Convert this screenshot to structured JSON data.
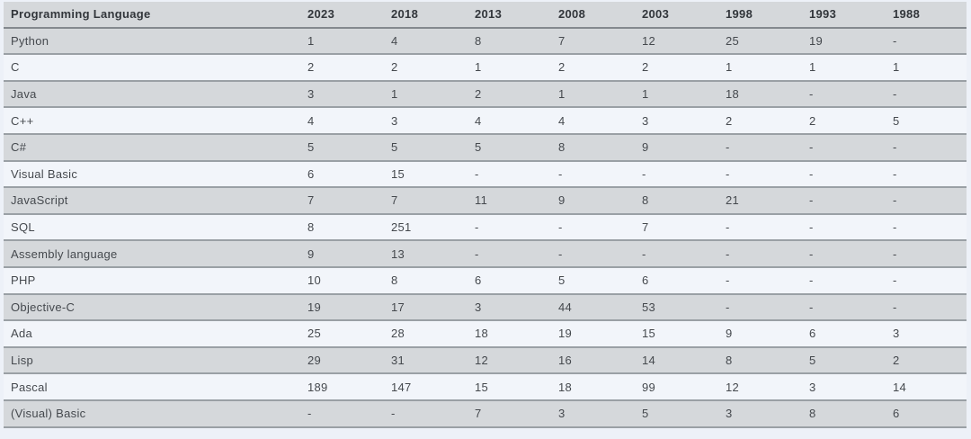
{
  "chart_data": {
    "type": "table",
    "columns": [
      "Programming Language",
      "2023",
      "2018",
      "2013",
      "2008",
      "2003",
      "1998",
      "1993",
      "1988"
    ],
    "rows": [
      [
        "Python",
        "1",
        "4",
        "8",
        "7",
        "12",
        "25",
        "19",
        "-"
      ],
      [
        "C",
        "2",
        "2",
        "1",
        "2",
        "2",
        "1",
        "1",
        "1"
      ],
      [
        "Java",
        "3",
        "1",
        "2",
        "1",
        "1",
        "18",
        "-",
        "-"
      ],
      [
        "C++",
        "4",
        "3",
        "4",
        "4",
        "3",
        "2",
        "2",
        "5"
      ],
      [
        "C#",
        "5",
        "5",
        "5",
        "8",
        "9",
        "-",
        "-",
        "-"
      ],
      [
        "Visual Basic",
        "6",
        "15",
        "-",
        "-",
        "-",
        "-",
        "-",
        "-"
      ],
      [
        "JavaScript",
        "7",
        "7",
        "11",
        "9",
        "8",
        "21",
        "-",
        "-"
      ],
      [
        "SQL",
        "8",
        "251",
        "-",
        "-",
        "7",
        "-",
        "-",
        "-"
      ],
      [
        "Assembly language",
        "9",
        "13",
        "-",
        "-",
        "-",
        "-",
        "-",
        "-"
      ],
      [
        "PHP",
        "10",
        "8",
        "6",
        "5",
        "6",
        "-",
        "-",
        "-"
      ],
      [
        "Objective-C",
        "19",
        "17",
        "3",
        "44",
        "53",
        "-",
        "-",
        "-"
      ],
      [
        "Ada",
        "25",
        "28",
        "18",
        "19",
        "15",
        "9",
        "6",
        "3"
      ],
      [
        "Lisp",
        "29",
        "31",
        "12",
        "16",
        "14",
        "8",
        "5",
        "2"
      ],
      [
        "Pascal",
        "189",
        "147",
        "15",
        "18",
        "99",
        "12",
        "3",
        "14"
      ],
      [
        "(Visual) Basic",
        "-",
        "-",
        "7",
        "3",
        "5",
        "3",
        "8",
        "6"
      ]
    ]
  },
  "colors": {
    "row_stripe_gray": "#d5d8db",
    "row_stripe_light": "#f2f5fa",
    "page_background": "#edf1f8",
    "row_divider": "#9aa0a5",
    "header_divider": "#84898e",
    "header_text": "#32363b",
    "cell_text": "#45494e"
  }
}
